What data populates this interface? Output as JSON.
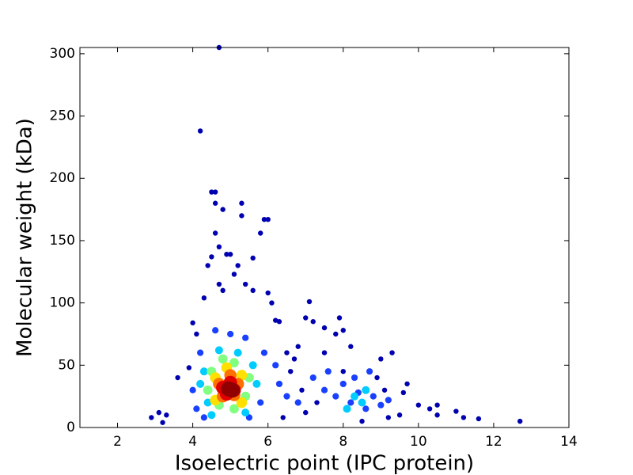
{
  "chart_data": {
    "type": "scatter",
    "x_label": "Isoelectric point (IPC protein)",
    "y_label": "Molecular weight (kDa)",
    "xlim": [
      1,
      14
    ],
    "ylim": [
      0,
      305
    ],
    "xticks": [
      2,
      4,
      6,
      8,
      10,
      12,
      14
    ],
    "yticks": [
      0,
      50,
      100,
      150,
      200,
      250,
      300
    ],
    "series": [
      {
        "color": "#0000b0",
        "x": [
          4.2,
          4.5,
          4.6,
          4.6,
          4.8,
          5.3,
          5.3,
          5.9,
          6.0,
          5.8,
          4.6,
          4.7,
          4.9,
          5.0,
          4.5,
          5.6,
          5.2,
          4.4,
          5.1,
          5.4,
          4.7,
          4.8,
          6.0,
          5.6,
          4.3,
          4.7,
          6.1,
          7.1,
          6.3,
          7.0,
          7.5,
          7.2,
          7.9,
          8.0,
          8.2,
          7.8,
          6.8,
          6.5,
          6.7,
          7.5,
          9.0,
          9.3,
          9.7,
          9.6,
          10.0,
          10.3,
          10.5,
          10.5,
          11.0,
          11.2,
          11.6,
          12.7,
          2.9,
          3.1,
          3.3,
          3.2,
          3.6,
          3.9,
          4.0,
          4.1,
          6.2,
          6.6,
          6.9,
          7.3,
          7.0,
          6.4,
          8.5,
          9.2,
          9.5,
          8.9,
          9.1,
          8.0
        ],
        "values": [
          238,
          189,
          189,
          180,
          175,
          180,
          170,
          167,
          167,
          156,
          156,
          145,
          139,
          139,
          137,
          136,
          130,
          130,
          123,
          115,
          115,
          110,
          108,
          110,
          104,
          305,
          100,
          101,
          85,
          88,
          80,
          85,
          88,
          78,
          65,
          75,
          65,
          60,
          55,
          60,
          55,
          60,
          35,
          28,
          18,
          15,
          18,
          10,
          13,
          8,
          7,
          5,
          8,
          12,
          10,
          4,
          40,
          48,
          84,
          75,
          86,
          45,
          30,
          20,
          12,
          8,
          5,
          8,
          10,
          40,
          30,
          45
        ]
      },
      {
        "color": "#1a40ff",
        "x": [
          7.5,
          7.8,
          8.0,
          8.2,
          8.4,
          8.6,
          8.8,
          9.0,
          7.2,
          7.6,
          8.3,
          8.7,
          9.2,
          6.8,
          6.5,
          6.3,
          6.2,
          4.0,
          4.1,
          4.2,
          5.9,
          5.8,
          4.3,
          5.5,
          5.0,
          4.6,
          5.4
        ],
        "values": [
          30,
          25,
          35,
          20,
          28,
          15,
          25,
          18,
          40,
          45,
          40,
          45,
          22,
          20,
          25,
          35,
          50,
          30,
          15,
          60,
          60,
          20,
          8,
          8,
          75,
          78,
          72
        ]
      },
      {
        "color": "#00ccff",
        "x": [
          8.3,
          8.5,
          8.6,
          8.1,
          4.3,
          4.4,
          5.6,
          5.7,
          4.7,
          5.2,
          4.5,
          5.4,
          4.2
        ],
        "values": [
          25,
          20,
          30,
          15,
          45,
          20,
          50,
          35,
          62,
          60,
          10,
          12,
          35
        ]
      },
      {
        "color": "#80ff80",
        "x": [
          4.5,
          4.4,
          5.5,
          5.4,
          4.8,
          5.1,
          4.7,
          5.1
        ],
        "values": [
          45,
          30,
          40,
          25,
          55,
          52,
          18,
          15
        ]
      },
      {
        "color": "#ffe000",
        "x": [
          4.6,
          5.3,
          4.6,
          5.3,
          4.9
        ],
        "values": [
          40,
          42,
          22,
          20,
          48
        ]
      },
      {
        "color": "#ff7000",
        "x": [
          4.7,
          5.2,
          4.8,
          5.1,
          5.0
        ],
        "values": [
          35,
          35,
          25,
          26,
          42
        ]
      },
      {
        "color": "#e00000",
        "x": [
          4.8,
          5.1,
          5.0,
          4.9
        ],
        "values": [
          32,
          30,
          36,
          27
        ]
      },
      {
        "color": "#900000",
        "x": [
          4.95,
          5.05
        ],
        "values": [
          31,
          30
        ]
      }
    ]
  }
}
